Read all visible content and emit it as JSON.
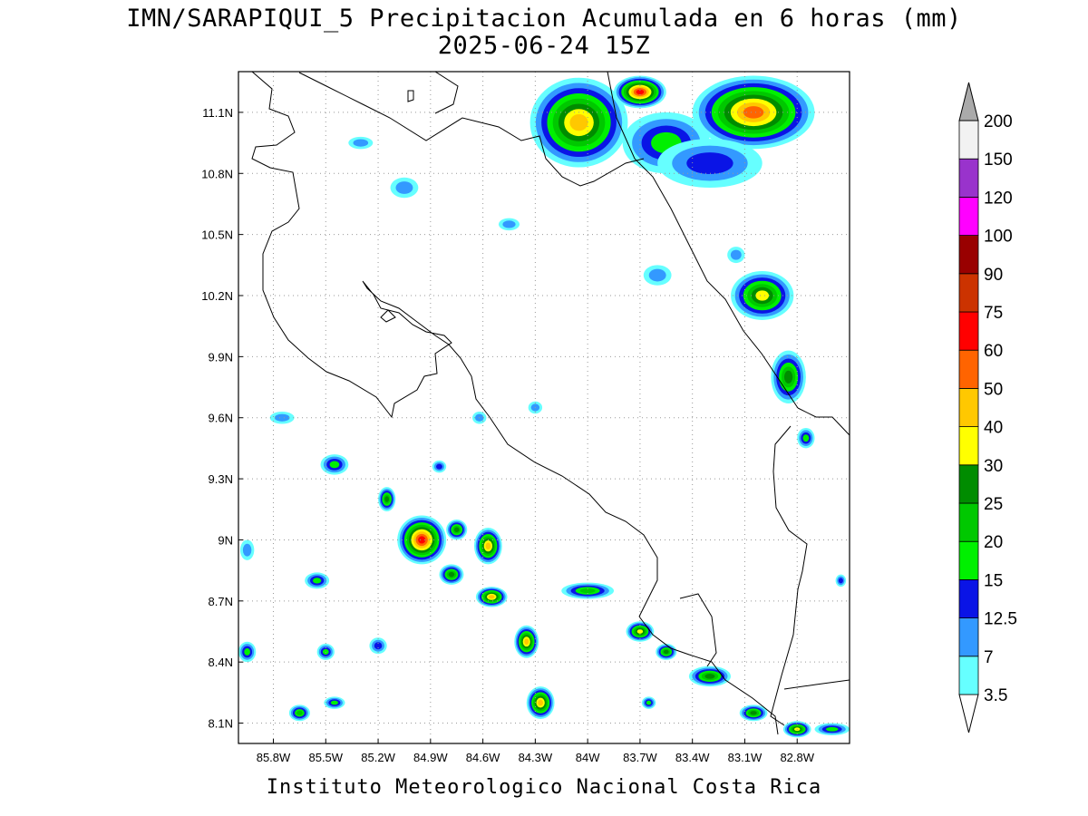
{
  "title": {
    "line1": "IMN/SARAPIQUI_5 Precipitacion Acumulada en 6 horas (mm)",
    "line2": "2025-06-24 15Z"
  },
  "footer": "Instituto Meteorologico Nacional Costa Rica",
  "map": {
    "lon_range": [
      -86.0,
      -82.5
    ],
    "lat_range": [
      8.0,
      11.3
    ],
    "x_ticks": [
      "85.8W",
      "85.5W",
      "85.2W",
      "84.9W",
      "84.6W",
      "84.3W",
      "84W",
      "83.7W",
      "83.4W",
      "83.1W",
      "82.8W"
    ],
    "x_tick_values": [
      -85.8,
      -85.5,
      -85.2,
      -84.9,
      -84.6,
      -84.3,
      -84.0,
      -83.7,
      -83.4,
      -83.1,
      -82.8
    ],
    "y_ticks": [
      "8.1N",
      "8.4N",
      "8.7N",
      "9N",
      "9.3N",
      "9.6N",
      "9.9N",
      "10.2N",
      "10.5N",
      "10.8N",
      "11.1N"
    ],
    "y_tick_values": [
      8.1,
      8.4,
      8.7,
      9.0,
      9.3,
      9.6,
      9.9,
      10.2,
      10.5,
      10.8,
      11.1
    ],
    "grid": "dotted"
  },
  "colorbar": {
    "levels": [
      "3.5",
      "7",
      "12.5",
      "15",
      "20",
      "25",
      "30",
      "40",
      "50",
      "60",
      "75",
      "90",
      "100",
      "120",
      "150",
      "200"
    ],
    "colors": [
      "#66ffff",
      "#3399ff",
      "#0a14e6",
      "#00f000",
      "#00c800",
      "#008c00",
      "#ffff00",
      "#ffc800",
      "#ff6400",
      "#ff0000",
      "#cc3300",
      "#990000",
      "#ff00ff",
      "#9933cc",
      "#f2f2f2",
      "#aaaaaa"
    ]
  },
  "precip_cells": [
    {
      "lon": -84.05,
      "lat": 11.05,
      "rx": 0.28,
      "ry": 0.22,
      "level": 7
    },
    {
      "lon": -83.05,
      "lat": 11.1,
      "rx": 0.35,
      "ry": 0.18,
      "level": 8
    },
    {
      "lon": -83.7,
      "lat": 11.2,
      "rx": 0.15,
      "ry": 0.08,
      "level": 9
    },
    {
      "lon": -83.55,
      "lat": 10.95,
      "rx": 0.25,
      "ry": 0.15,
      "level": 3
    },
    {
      "lon": -83.3,
      "lat": 10.85,
      "rx": 0.3,
      "ry": 0.12,
      "level": 2
    },
    {
      "lon": -84.45,
      "lat": 10.55,
      "rx": 0.06,
      "ry": 0.03,
      "level": 1
    },
    {
      "lon": -85.3,
      "lat": 10.95,
      "rx": 0.07,
      "ry": 0.03,
      "level": 1
    },
    {
      "lon": -85.05,
      "lat": 10.73,
      "rx": 0.08,
      "ry": 0.05,
      "level": 1
    },
    {
      "lon": -83.0,
      "lat": 10.2,
      "rx": 0.18,
      "ry": 0.12,
      "level": 6
    },
    {
      "lon": -82.85,
      "lat": 9.8,
      "rx": 0.1,
      "ry": 0.13,
      "level": 5
    },
    {
      "lon": -83.15,
      "lat": 10.4,
      "rx": 0.05,
      "ry": 0.04,
      "level": 1
    },
    {
      "lon": -83.6,
      "lat": 10.3,
      "rx": 0.08,
      "ry": 0.05,
      "level": 1
    },
    {
      "lon": -85.75,
      "lat": 9.6,
      "rx": 0.07,
      "ry": 0.03,
      "level": 1
    },
    {
      "lon": -85.45,
      "lat": 9.37,
      "rx": 0.08,
      "ry": 0.05,
      "level": 3
    },
    {
      "lon": -84.95,
      "lat": 9.0,
      "rx": 0.14,
      "ry": 0.12,
      "level": 9
    },
    {
      "lon": -85.15,
      "lat": 9.2,
      "rx": 0.05,
      "ry": 0.06,
      "level": 5
    },
    {
      "lon": -84.75,
      "lat": 9.05,
      "rx": 0.06,
      "ry": 0.05,
      "level": 5
    },
    {
      "lon": -84.57,
      "lat": 8.97,
      "rx": 0.08,
      "ry": 0.09,
      "level": 7
    },
    {
      "lon": -84.78,
      "lat": 8.83,
      "rx": 0.07,
      "ry": 0.05,
      "level": 5
    },
    {
      "lon": -84.55,
      "lat": 8.72,
      "rx": 0.09,
      "ry": 0.05,
      "level": 7
    },
    {
      "lon": -84.35,
      "lat": 8.5,
      "rx": 0.07,
      "ry": 0.08,
      "level": 7
    },
    {
      "lon": -84.27,
      "lat": 8.2,
      "rx": 0.08,
      "ry": 0.08,
      "level": 7
    },
    {
      "lon": -85.55,
      "lat": 8.8,
      "rx": 0.07,
      "ry": 0.04,
      "level": 3
    },
    {
      "lon": -85.2,
      "lat": 8.48,
      "rx": 0.05,
      "ry": 0.04,
      "level": 2
    },
    {
      "lon": -85.5,
      "lat": 8.45,
      "rx": 0.05,
      "ry": 0.04,
      "level": 3
    },
    {
      "lon": -85.65,
      "lat": 8.15,
      "rx": 0.06,
      "ry": 0.04,
      "level": 4
    },
    {
      "lon": -85.45,
      "lat": 8.2,
      "rx": 0.06,
      "ry": 0.03,
      "level": 3
    },
    {
      "lon": -85.95,
      "lat": 8.45,
      "rx": 0.05,
      "ry": 0.05,
      "level": 3
    },
    {
      "lon": -85.95,
      "lat": 8.95,
      "rx": 0.04,
      "ry": 0.05,
      "level": 1
    },
    {
      "lon": -84.0,
      "lat": 8.75,
      "rx": 0.15,
      "ry": 0.04,
      "level": 4
    },
    {
      "lon": -83.7,
      "lat": 8.55,
      "rx": 0.08,
      "ry": 0.05,
      "level": 6
    },
    {
      "lon": -83.55,
      "lat": 8.45,
      "rx": 0.06,
      "ry": 0.04,
      "level": 5
    },
    {
      "lon": -83.3,
      "lat": 8.33,
      "rx": 0.12,
      "ry": 0.05,
      "level": 5
    },
    {
      "lon": -83.05,
      "lat": 8.15,
      "rx": 0.08,
      "ry": 0.04,
      "level": 5
    },
    {
      "lon": -82.8,
      "lat": 8.07,
      "rx": 0.08,
      "ry": 0.04,
      "level": 6
    },
    {
      "lon": -82.6,
      "lat": 8.07,
      "rx": 0.1,
      "ry": 0.03,
      "level": 3
    },
    {
      "lon": -83.65,
      "lat": 8.2,
      "rx": 0.04,
      "ry": 0.03,
      "level": 3
    },
    {
      "lon": -82.75,
      "lat": 9.5,
      "rx": 0.05,
      "ry": 0.05,
      "level": 3
    },
    {
      "lon": -82.55,
      "lat": 8.8,
      "rx": 0.03,
      "ry": 0.03,
      "level": 2
    },
    {
      "lon": -84.62,
      "lat": 9.6,
      "rx": 0.04,
      "ry": 0.03,
      "level": 1
    },
    {
      "lon": -84.3,
      "lat": 9.65,
      "rx": 0.04,
      "ry": 0.03,
      "level": 1
    },
    {
      "lon": -84.85,
      "lat": 9.36,
      "rx": 0.04,
      "ry": 0.03,
      "level": 2
    }
  ]
}
